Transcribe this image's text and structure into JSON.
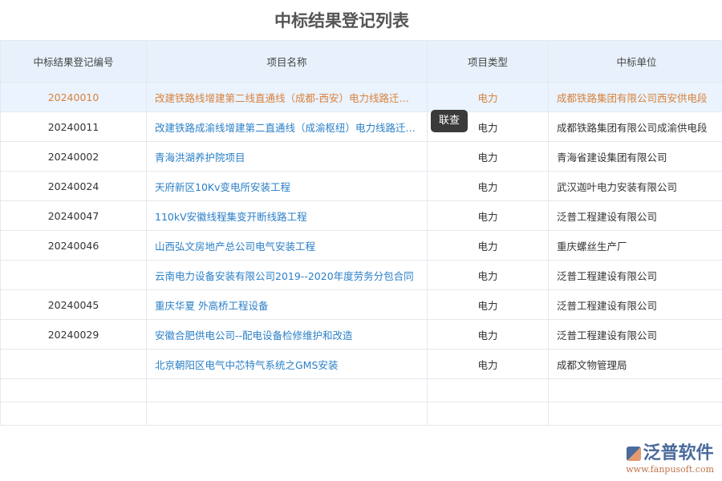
{
  "title": "中标结果登记列表",
  "columns": [
    "中标结果登记编号",
    "项目名称",
    "项目类型",
    "中标单位"
  ],
  "rows": [
    {
      "id": "20240010",
      "name": "改建铁路线增建第二线直通线（成都-西安）电力线路迁改工程",
      "type": "电力",
      "unit": "成都铁路集团有限公司西安供电段"
    },
    {
      "id": "20240011",
      "name": "改建铁路成渝线增建第二直通线（成渝枢纽）电力线路迁改工程",
      "type": "电力",
      "unit": "成都铁路集团有限公司成渝供电段"
    },
    {
      "id": "20240002",
      "name": "青海洪湖养护院项目",
      "type": "电力",
      "unit": "青海省建设集团有限公司"
    },
    {
      "id": "20240024",
      "name": "天府新区10Kv变电所安装工程",
      "type": "电力",
      "unit": "武汉迦叶电力安装有限公司"
    },
    {
      "id": "20240047",
      "name": "110kV安徽线程集变开断线路工程",
      "type": "电力",
      "unit": "泛普工程建设有限公司"
    },
    {
      "id": "20240046",
      "name": "山西弘文房地产总公司电气安装工程",
      "type": "电力",
      "unit": "重庆螺丝生产厂"
    },
    {
      "id": "",
      "name": "云南电力设备安装有限公司2019--2020年度劳务分包合同",
      "type": "电力",
      "unit": "泛普工程建设有限公司"
    },
    {
      "id": "20240045",
      "name": "重庆华夏 外高桥工程设备",
      "type": "电力",
      "unit": "泛普工程建设有限公司"
    },
    {
      "id": "20240029",
      "name": "安徽合肥供电公司--配电设备检修维护和改造",
      "type": "电力",
      "unit": "泛普工程建设有限公司"
    },
    {
      "id": "",
      "name": "北京朝阳区电气中芯特气系统之GMS安装",
      "type": "电力",
      "unit": "成都文物管理局"
    }
  ],
  "tooltip": "联查",
  "logo": {
    "name": "泛普软件",
    "url": "www.fanpusoft.com"
  }
}
